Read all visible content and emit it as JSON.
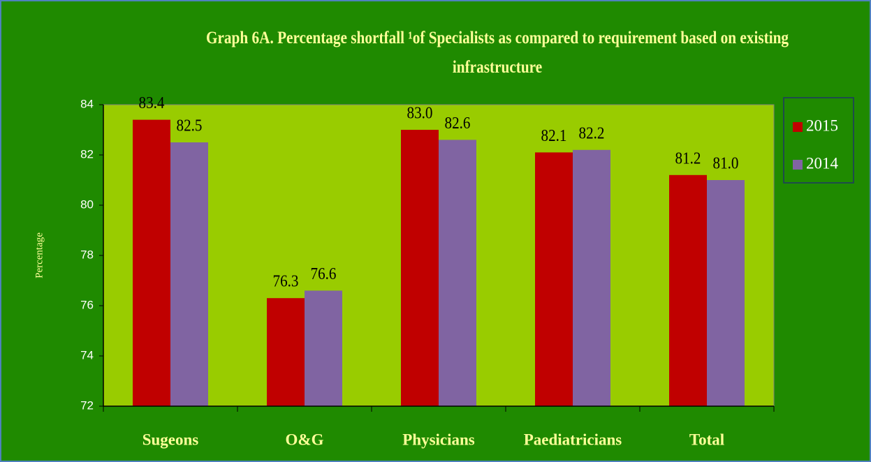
{
  "chart_data": {
    "type": "bar",
    "title": "Graph 6A. Percentage shortfall ¹of Specialists as compared to requirement based on existing infrastructure",
    "y_label": "Percentage",
    "categories": [
      "Sugeons",
      "O&G",
      "Physicians",
      "Paediatricians",
      "Total"
    ],
    "series": [
      {
        "name": "2015",
        "color": "#c00000",
        "values": [
          83.4,
          76.3,
          83.0,
          82.1,
          81.2
        ],
        "value_labels": [
          "83.4",
          "76.3",
          "83.0",
          "82.1",
          "81.2"
        ]
      },
      {
        "name": "2014",
        "color": "#8064a2",
        "values": [
          82.5,
          76.6,
          82.6,
          82.2,
          81.0
        ],
        "value_labels": [
          "82.5",
          "76.6",
          "82.6",
          "82.2",
          "81.0"
        ]
      }
    ],
    "ylim": [
      72,
      84
    ],
    "yticks": [
      72,
      74,
      76,
      78,
      80,
      82,
      84
    ],
    "grid": false,
    "legend": "right"
  }
}
